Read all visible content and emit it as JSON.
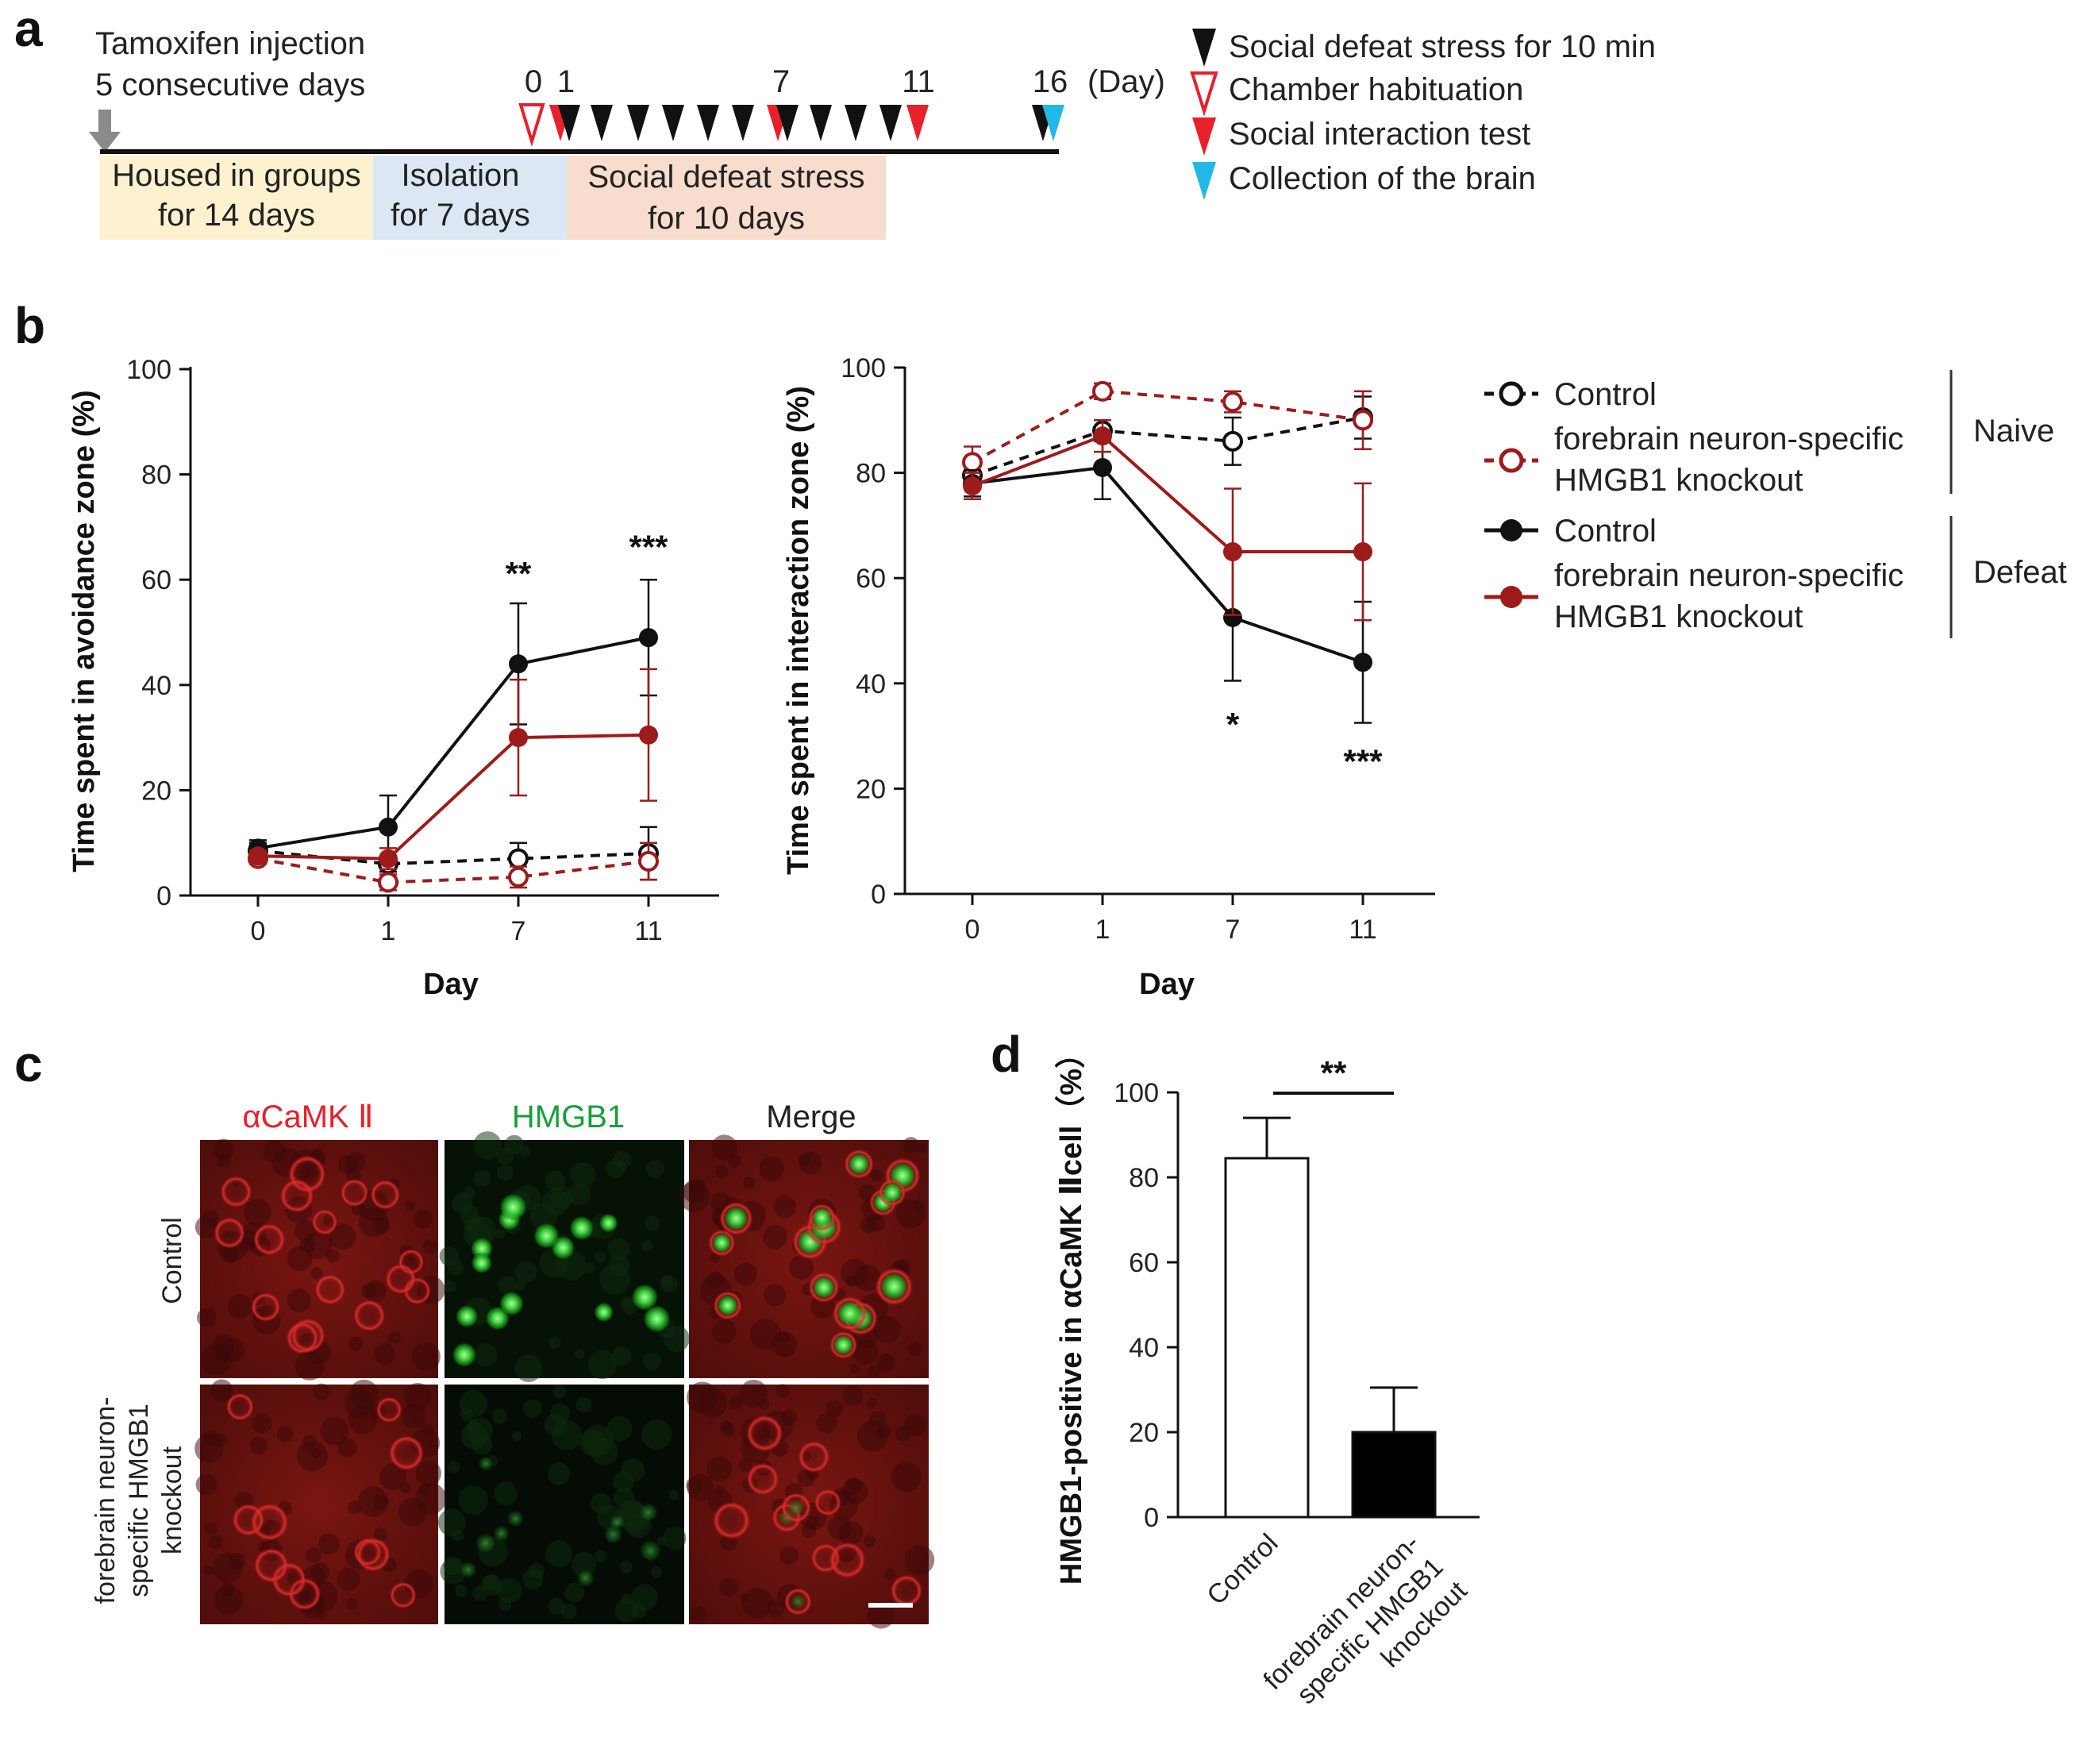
{
  "figure": {
    "panel_letters": [
      "a",
      "b",
      "c",
      "d"
    ],
    "colors": {
      "black": "#111111",
      "dark_red": "#9e1b1b",
      "bright_red": "#e8202a",
      "cyan": "#22b8e6",
      "gray_arrow": "#8a8a8a",
      "group_bg": "#fdf1cf",
      "isolation_bg": "#dbe8f4",
      "defeat_bg": "#f8dccd"
    }
  },
  "panel_a": {
    "injection_line1": "Tamoxifen injection",
    "injection_line2": "5 consecutive days",
    "day_labels": [
      "0",
      "1",
      "7",
      "11",
      "16"
    ],
    "day_unit": "(Day)",
    "phases": [
      {
        "line1": "Housed in groups",
        "line2": "for 14 days"
      },
      {
        "line1": "Isolation",
        "line2": "for 7 days"
      },
      {
        "line1": "Social defeat stress",
        "line2": "for 10 days"
      }
    ],
    "legend": [
      {
        "label": "Social defeat stress for 10 min",
        "icon": "black-filled-triangle-icon"
      },
      {
        "label": "Chamber habituation",
        "icon": "red-open-triangle-icon"
      },
      {
        "label": "Social interaction test",
        "icon": "red-filled-triangle-icon"
      },
      {
        "label": "Collection of the brain",
        "icon": "cyan-filled-triangle-icon"
      }
    ]
  },
  "panel_b_legend": {
    "entries": [
      {
        "label_line1": "Control",
        "label_line2": "",
        "style": "dashed-open-black"
      },
      {
        "label_line1": "forebrain neuron-specific",
        "label_line2": "HMGB1 knockout",
        "style": "dashed-open-red"
      },
      {
        "label_line1": "Control",
        "label_line2": "",
        "style": "solid-filled-black"
      },
      {
        "label_line1": "forebrain neuron-specific",
        "label_line2": "HMGB1 knockout",
        "style": "solid-filled-red"
      }
    ],
    "groups": [
      "Naive",
      "Defeat"
    ]
  },
  "panel_c": {
    "columns": [
      "αCaMK Ⅱ",
      "HMGB1",
      "Merge"
    ],
    "rows": [
      {
        "line1": "Control",
        "line2": "",
        "line3": ""
      },
      {
        "line1": "forebrain neuron-",
        "line2": "specific HMGB1",
        "line3": "knockout"
      }
    ]
  },
  "chart_data": [
    {
      "type": "line",
      "panel": "b-left",
      "title": "",
      "xlabel": "Day",
      "ylabel": "Time spent in avoidance zone (%)",
      "categories": [
        "0",
        "1",
        "7",
        "11"
      ],
      "ylim": [
        0,
        100
      ],
      "yticks": [
        0,
        20,
        40,
        60,
        80,
        100
      ],
      "series": [
        {
          "name": "Naive Control",
          "style": "dashed-open-black",
          "values": [
            8.5,
            6,
            7,
            8
          ],
          "errors": [
            1.5,
            1.5,
            3,
            5
          ]
        },
        {
          "name": "Naive forebrain neuron-specific HMGB1 knockout",
          "style": "dashed-open-red",
          "values": [
            7,
            2.5,
            3.5,
            6.5
          ],
          "errors": [
            1,
            1.5,
            2,
            3.5
          ]
        },
        {
          "name": "Defeat Control",
          "style": "solid-filled-black",
          "values": [
            9,
            13,
            44,
            49
          ],
          "errors": [
            1.5,
            6,
            11.5,
            11
          ]
        },
        {
          "name": "Defeat forebrain neuron-specific HMGB1 knockout",
          "style": "solid-filled-red",
          "values": [
            7.5,
            7,
            30,
            30.5
          ],
          "errors": [
            1,
            2,
            11,
            12.5
          ]
        }
      ],
      "annotations": [
        {
          "category": "7",
          "text": "**",
          "y": 59
        },
        {
          "category": "11",
          "text": "***",
          "y": 64
        }
      ]
    },
    {
      "type": "line",
      "panel": "b-right",
      "title": "",
      "xlabel": "Day",
      "ylabel": "Time spent in interaction zone (%)",
      "categories": [
        "0",
        "1",
        "7",
        "11"
      ],
      "ylim": [
        0,
        100
      ],
      "yticks": [
        0,
        20,
        40,
        60,
        80,
        100
      ],
      "series": [
        {
          "name": "Naive Control",
          "style": "dashed-open-black",
          "values": [
            79.5,
            88,
            86,
            90.5
          ],
          "errors": [
            2,
            2,
            4.5,
            4
          ]
        },
        {
          "name": "Naive forebrain neuron-specific HMGB1 knockout",
          "style": "dashed-open-red",
          "values": [
            82,
            95.5,
            93.5,
            90
          ],
          "errors": [
            3,
            1.5,
            2,
            5.5
          ]
        },
        {
          "name": "Defeat Control",
          "style": "solid-filled-black",
          "values": [
            78,
            81,
            52.5,
            44
          ],
          "errors": [
            2.5,
            6,
            12,
            11.5
          ]
        },
        {
          "name": "Defeat forebrain neuron-specific HMGB1 knockout",
          "style": "solid-filled-red",
          "values": [
            77.5,
            87,
            65,
            65
          ],
          "errors": [
            2.5,
            3,
            12,
            13
          ]
        }
      ],
      "annotations": [
        {
          "category": "7",
          "text": "*",
          "y": 30
        },
        {
          "category": "11",
          "text": "***",
          "y": 23
        }
      ]
    },
    {
      "type": "bar",
      "panel": "d",
      "title": "",
      "xlabel": "",
      "ylabel": "HMGB1-positive in αCaMK Ⅱcell（%）",
      "categories": [
        "Control",
        "forebrain neuron-specific HMGB1 knockout"
      ],
      "category_lines": [
        [
          "Control"
        ],
        [
          "forebrain neuron-",
          "specific HMGB1",
          "knockout"
        ]
      ],
      "values": [
        84.5,
        20
      ],
      "errors": [
        9.5,
        10.5
      ],
      "fills": [
        "#ffffff",
        "#000000"
      ],
      "ylim": [
        0,
        100
      ],
      "yticks": [
        0,
        20,
        40,
        60,
        80,
        100
      ],
      "significance": "**"
    }
  ]
}
